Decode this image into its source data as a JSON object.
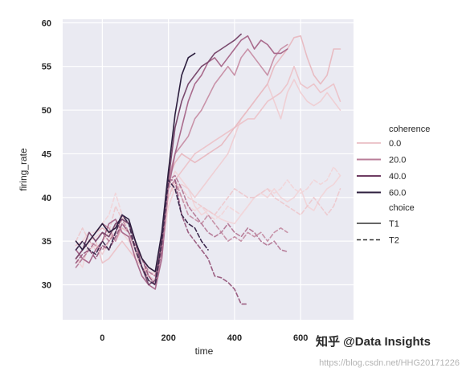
{
  "chart_data": {
    "type": "line",
    "title": "",
    "xlabel": "time",
    "ylabel": "firing_rate",
    "xlim": [
      -120,
      760
    ],
    "ylim": [
      26,
      60.4
    ],
    "xticks": [
      0,
      200,
      400,
      600
    ],
    "yticks": [
      30,
      35,
      40,
      45,
      50,
      55,
      60
    ],
    "grid": true,
    "legend": {
      "placement": "right",
      "hue_title": "coherence",
      "style_title": "choice",
      "hue_entries": [
        {
          "label": "0.0",
          "color": "#ecc6cc"
        },
        {
          "label": "20.0",
          "color": "#b97d98"
        },
        {
          "label": "40.0",
          "color": "#6f3d63"
        },
        {
          "label": "60.0",
          "color": "#2c1e3e"
        }
      ],
      "style_entries": [
        {
          "label": "T1",
          "dash": "solid"
        },
        {
          "label": "T2",
          "dash": "dashed"
        }
      ]
    },
    "series": [
      {
        "coherence": "0.0",
        "choice": "T1",
        "color": "#f1d6da",
        "x": [
          -80,
          -60,
          -40,
          -20,
          0,
          20,
          40,
          60,
          80,
          100,
          120,
          140,
          160,
          180,
          200,
          220,
          240,
          260,
          280,
          300,
          320,
          340,
          360,
          380,
          400,
          420,
          440,
          460,
          480,
          500,
          520,
          540,
          560,
          580,
          600,
          620,
          640,
          660,
          680,
          700,
          720
        ],
        "y": [
          33,
          32,
          35,
          35.5,
          36,
          35,
          37,
          36,
          35,
          33.5,
          32,
          31,
          31.5,
          35,
          41,
          43,
          42,
          41,
          39,
          38,
          38.5,
          38,
          37.5,
          37.2,
          37,
          38,
          39,
          40,
          40.5,
          40,
          41,
          40,
          39.5,
          40,
          41,
          39,
          38.5,
          40,
          41,
          41.5,
          42.5
        ]
      },
      {
        "coherence": "0.0",
        "choice": "T1",
        "color": "#efcfd4",
        "x": [
          -80,
          -60,
          -40,
          -20,
          0,
          20,
          40,
          60,
          80,
          100,
          120,
          140,
          160,
          180,
          200,
          220,
          240,
          260,
          280,
          300,
          320,
          340,
          360,
          380,
          400,
          420,
          440,
          460,
          480,
          500,
          520,
          540,
          560,
          580,
          600,
          620,
          640,
          660,
          680,
          700,
          720
        ],
        "y": [
          32.5,
          33,
          34,
          34.5,
          33.5,
          35,
          36,
          37.5,
          37,
          35,
          33,
          32,
          31.5,
          34,
          39,
          41,
          41.5,
          41,
          40,
          41,
          42,
          43,
          44,
          45,
          47,
          49,
          50,
          51,
          52,
          53,
          51,
          49,
          52,
          53.5,
          52,
          51,
          50.5,
          51,
          52,
          51,
          50
        ]
      },
      {
        "coherence": "0.0",
        "choice": "T1",
        "color": "#ecc5cb",
        "x": [
          -80,
          -60,
          -40,
          -20,
          0,
          20,
          40,
          60,
          80,
          100,
          120,
          140,
          160,
          180,
          200,
          220,
          240,
          260,
          280,
          300,
          320,
          340,
          360,
          380,
          400,
          420,
          440,
          460,
          480,
          500,
          520,
          540,
          560,
          580,
          600,
          620,
          640,
          660,
          680,
          700,
          720
        ],
        "y": [
          34.5,
          35,
          36,
          35,
          32.5,
          33,
          34,
          35,
          34,
          33,
          32,
          31,
          30.5,
          35,
          40,
          42,
          43,
          44,
          45,
          45.5,
          46,
          46.5,
          47,
          47.5,
          48,
          48.5,
          49,
          49,
          50,
          51,
          51.5,
          52,
          53,
          55,
          53,
          52.5,
          53,
          52,
          52.5,
          53,
          51
        ]
      },
      {
        "coherence": "0.0",
        "choice": "T1",
        "color": "#e8bcc3",
        "x": [
          -80,
          -60,
          -40,
          -20,
          0,
          20,
          40,
          60,
          80,
          100,
          120,
          140,
          160,
          180,
          200,
          220,
          240,
          260,
          280,
          300,
          320,
          340,
          360,
          380,
          400,
          420,
          440,
          460,
          480,
          500,
          520,
          540,
          560,
          580,
          600,
          620,
          640,
          660,
          680,
          700,
          720
        ],
        "y": [
          33,
          34,
          35,
          36,
          36.5,
          36,
          35,
          36.5,
          36,
          34,
          32,
          31.5,
          31,
          35,
          42,
          44,
          45,
          44.5,
          44,
          44.5,
          45,
          45.5,
          46,
          47,
          48,
          49,
          50,
          51,
          52,
          53,
          55,
          56,
          57,
          58.3,
          58.5,
          56,
          54,
          53,
          54,
          57,
          57
        ]
      },
      {
        "coherence": "0.0",
        "choice": "T2",
        "color": "#f1d6da",
        "dashed": true,
        "x": [
          -80,
          -60,
          -40,
          -20,
          0,
          20,
          40,
          60,
          80,
          100,
          120,
          140,
          160,
          180,
          200,
          220,
          240,
          260,
          280,
          300,
          320,
          340,
          360,
          380,
          400,
          420,
          440,
          460,
          480,
          500,
          520,
          540,
          560,
          580,
          600,
          620,
          640,
          660,
          680,
          700,
          720
        ],
        "y": [
          34,
          35,
          36,
          36,
          37,
          38,
          40.5,
          38,
          36,
          34,
          33,
          32,
          31,
          34,
          39,
          41,
          40,
          39,
          38.5,
          39,
          38,
          37.5,
          38,
          39,
          38.5,
          38,
          39,
          40,
          40.5,
          41,
          40.5,
          41,
          42,
          41,
          40.5,
          41,
          42,
          41.5,
          42,
          43.5,
          42.5
        ]
      },
      {
        "coherence": "0.0",
        "choice": "T2",
        "color": "#edcbd0",
        "dashed": true,
        "x": [
          -80,
          -60,
          -40,
          -20,
          0,
          20,
          40,
          60,
          80,
          100,
          120,
          140,
          160,
          180,
          200,
          220,
          240,
          260,
          280,
          300,
          320,
          340,
          360,
          380,
          400,
          420,
          440,
          460,
          480,
          500,
          520,
          540,
          560,
          580,
          600,
          620,
          640,
          660,
          680,
          700,
          720
        ],
        "y": [
          35,
          36.5,
          35,
          34,
          35,
          36,
          39,
          37.5,
          37,
          35,
          33,
          32,
          31.5,
          35,
          40,
          41.5,
          41,
          40,
          39.5,
          39,
          38.5,
          38,
          39,
          40,
          41,
          40.5,
          40,
          40,
          40.5,
          41,
          40,
          39.5,
          39,
          38.5,
          38,
          39,
          40,
          39,
          38,
          39,
          41
        ]
      },
      {
        "coherence": "20.0",
        "choice": "T1",
        "color": "#c993a9",
        "x": [
          -80,
          -60,
          -40,
          -20,
          0,
          20,
          40,
          60,
          80,
          100,
          120,
          140,
          160,
          180,
          200,
          220,
          240,
          260,
          280,
          300,
          320,
          340,
          360,
          380,
          400,
          420,
          440,
          460,
          480,
          500,
          520,
          540,
          560
        ],
        "y": [
          33,
          34,
          35,
          36,
          37,
          36.5,
          35,
          37,
          36,
          34,
          32,
          30.5,
          30,
          36,
          42,
          45,
          46,
          47,
          49,
          50,
          51.5,
          53,
          54,
          55,
          54,
          56,
          57,
          56,
          55,
          54,
          56,
          57,
          57.5
        ]
      },
      {
        "coherence": "20.0",
        "choice": "T1",
        "color": "#a96b8d",
        "x": [
          -80,
          -60,
          -40,
          -20,
          0,
          20,
          40,
          60,
          80,
          100,
          120,
          140,
          160,
          180,
          200,
          220,
          240,
          260,
          280,
          300,
          320,
          340,
          360,
          380,
          400,
          420,
          440,
          460,
          480,
          500,
          520,
          540,
          560
        ],
        "y": [
          34,
          33,
          32.5,
          34,
          35,
          37,
          37.5,
          36,
          35.5,
          33,
          31,
          30,
          29.5,
          33,
          41,
          45,
          48,
          51,
          53,
          54,
          55.5,
          56,
          55,
          56,
          57,
          58,
          58.5,
          57,
          58,
          57.5,
          56.5,
          56.5,
          57
        ]
      },
      {
        "coherence": "20.0",
        "choice": "T2",
        "color": "#c794a9",
        "dashed": true,
        "x": [
          -80,
          -60,
          -40,
          -20,
          0,
          20,
          40,
          60,
          80,
          100,
          120,
          140,
          160,
          180,
          200,
          220,
          240,
          260,
          280,
          300,
          320,
          340,
          360,
          380,
          400,
          420,
          440,
          460,
          480,
          500,
          520,
          540,
          560
        ],
        "y": [
          33,
          34,
          35,
          34.5,
          34,
          35,
          36,
          37.5,
          36,
          34,
          32,
          31,
          30,
          34,
          41,
          42,
          40,
          38,
          37.5,
          37,
          38,
          37,
          36,
          35,
          35.5,
          35,
          36,
          35.5,
          36,
          35,
          36,
          36.5,
          36
        ]
      },
      {
        "coherence": "20.0",
        "choice": "T2",
        "color": "#b77f9b",
        "dashed": true,
        "x": [
          -80,
          -60,
          -40,
          -20,
          0,
          20,
          40,
          60,
          80,
          100,
          120,
          140,
          160,
          180,
          200,
          220,
          240,
          260,
          280,
          300,
          320,
          340,
          360,
          380,
          400,
          420,
          440,
          460,
          480,
          500,
          520,
          540,
          560
        ],
        "y": [
          32,
          33,
          34,
          35,
          36,
          35,
          36,
          38,
          37,
          35,
          33,
          31.5,
          31,
          35,
          42,
          42.5,
          41,
          39,
          38,
          37,
          36,
          35.5,
          36,
          37,
          36,
          35.5,
          36.5,
          36,
          35,
          34.5,
          35,
          34,
          33.8
        ]
      },
      {
        "coherence": "40.0",
        "choice": "T1",
        "color": "#7a4a6e",
        "x": [
          -80,
          -60,
          -40,
          -20,
          0,
          20,
          40,
          60,
          80,
          100,
          120,
          140,
          160,
          180,
          200,
          220,
          240,
          260,
          280,
          300,
          320,
          340,
          360,
          380,
          400,
          420
        ],
        "y": [
          33,
          34,
          36,
          35,
          36,
          35.5,
          37,
          37.5,
          37,
          35,
          32,
          30,
          30.5,
          35,
          42,
          48,
          51,
          53,
          54,
          55,
          55.5,
          56.5,
          57,
          57.5,
          58,
          58.7
        ]
      },
      {
        "coherence": "40.0",
        "choice": "T2",
        "color": "#9b5f82",
        "dashed": true,
        "x": [
          -80,
          -60,
          -40,
          -20,
          0,
          20,
          40,
          60,
          80,
          100,
          120,
          140,
          160,
          180,
          200,
          220,
          240,
          260,
          280,
          300,
          320,
          340,
          360,
          380,
          400,
          420,
          440
        ],
        "y": [
          32.5,
          33.5,
          34,
          33,
          34.5,
          34,
          35.5,
          37,
          36,
          34.5,
          33,
          31,
          30,
          34,
          42,
          42,
          38,
          36,
          35,
          34,
          33,
          31,
          30.8,
          30.3,
          29.5,
          27.8,
          27.8
        ]
      },
      {
        "coherence": "60.0",
        "choice": "T1",
        "color": "#2c1e3e",
        "x": [
          -80,
          -60,
          -40,
          -20,
          0,
          20,
          40,
          60,
          80,
          100,
          120,
          140,
          160,
          180,
          200,
          220,
          240,
          260,
          280
        ],
        "y": [
          35,
          34,
          35,
          36,
          37,
          36,
          36.5,
          38,
          37.5,
          35,
          33,
          32,
          31.5,
          36,
          43,
          49.5,
          54,
          56,
          56.5
        ]
      },
      {
        "coherence": "60.0",
        "choice": "T2",
        "color": "#3e2a4e",
        "dashed": true,
        "x": [
          -80,
          -60,
          -40,
          -20,
          0,
          20,
          40,
          60,
          80,
          100,
          120,
          140,
          160,
          180,
          200,
          220,
          240,
          260,
          280,
          300,
          320
        ],
        "y": [
          34,
          35,
          34,
          33.5,
          35,
          34,
          36,
          38,
          37,
          34,
          32,
          30.5,
          30,
          35,
          42,
          41,
          38,
          37,
          36.5,
          35,
          34
        ]
      }
    ]
  },
  "watermark": {
    "brand": "知乎 @Data Insights",
    "url": "https://blog.csdn.net/HHG20171226"
  }
}
